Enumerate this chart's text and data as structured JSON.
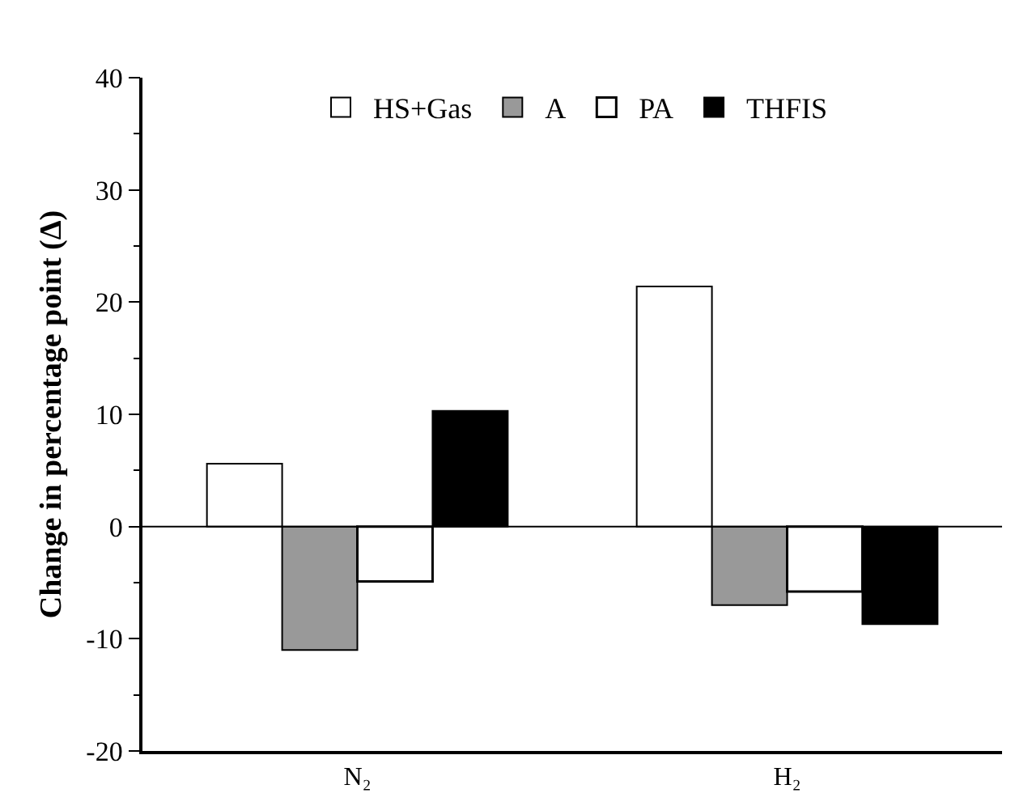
{
  "chart_data": {
    "type": "bar",
    "ylabel": "Change in percentage point (Δ)",
    "categories": [
      "N₂",
      "H₂"
    ],
    "series": [
      {
        "name": "HS+Gas",
        "color": "#ffffff",
        "values": [
          5.6,
          21.4
        ]
      },
      {
        "name": "A",
        "color": "#999999",
        "values": [
          -11.0,
          -7.0
        ]
      },
      {
        "name": "PA",
        "color": "#ffffff",
        "values": [
          -4.9,
          -5.8
        ]
      },
      {
        "name": "THFIS",
        "color": "#000000",
        "values": [
          10.3,
          -8.7
        ]
      }
    ],
    "ylim": [
      -20,
      40
    ],
    "yticks": [
      -20,
      -10,
      0,
      10,
      20,
      30,
      40
    ],
    "grid": false,
    "ref_lines": [
      {
        "axis": "y",
        "value": 0,
        "color": "#000000"
      }
    ],
    "legend": "top"
  }
}
